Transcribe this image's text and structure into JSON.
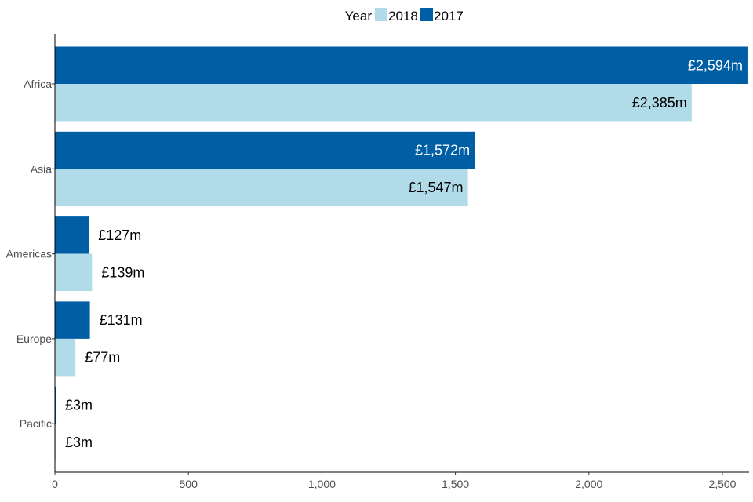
{
  "chart_data": {
    "type": "bar",
    "orientation": "horizontal",
    "categories": [
      "Africa",
      "Asia",
      "Americas",
      "Europe",
      "Pacific"
    ],
    "series": [
      {
        "name": "2017",
        "color": "#005ea5",
        "values": [
          2594,
          1572,
          127,
          131,
          3
        ],
        "labels": [
          "£2,594m",
          "£1,572m",
          "£127m",
          "£131m",
          "£3m"
        ]
      },
      {
        "name": "2018",
        "color": "#b1dbe8",
        "values": [
          2385,
          1547,
          139,
          77,
          3
        ],
        "labels": [
          "£2,385m",
          "£1,547m",
          "£139m",
          "£77m",
          "£3m"
        ]
      }
    ],
    "legend": {
      "title": "Year",
      "position": "top",
      "order": [
        "2018",
        "2017"
      ]
    },
    "xlim": [
      0,
      2600
    ],
    "xticks": [
      0,
      500,
      1000,
      1500,
      2000,
      2500
    ],
    "xtick_labels": [
      "0",
      "500",
      "1,000",
      "1,500",
      "2,000",
      "2,500"
    ],
    "title": "",
    "xlabel": "",
    "ylabel": "",
    "grid": false
  }
}
